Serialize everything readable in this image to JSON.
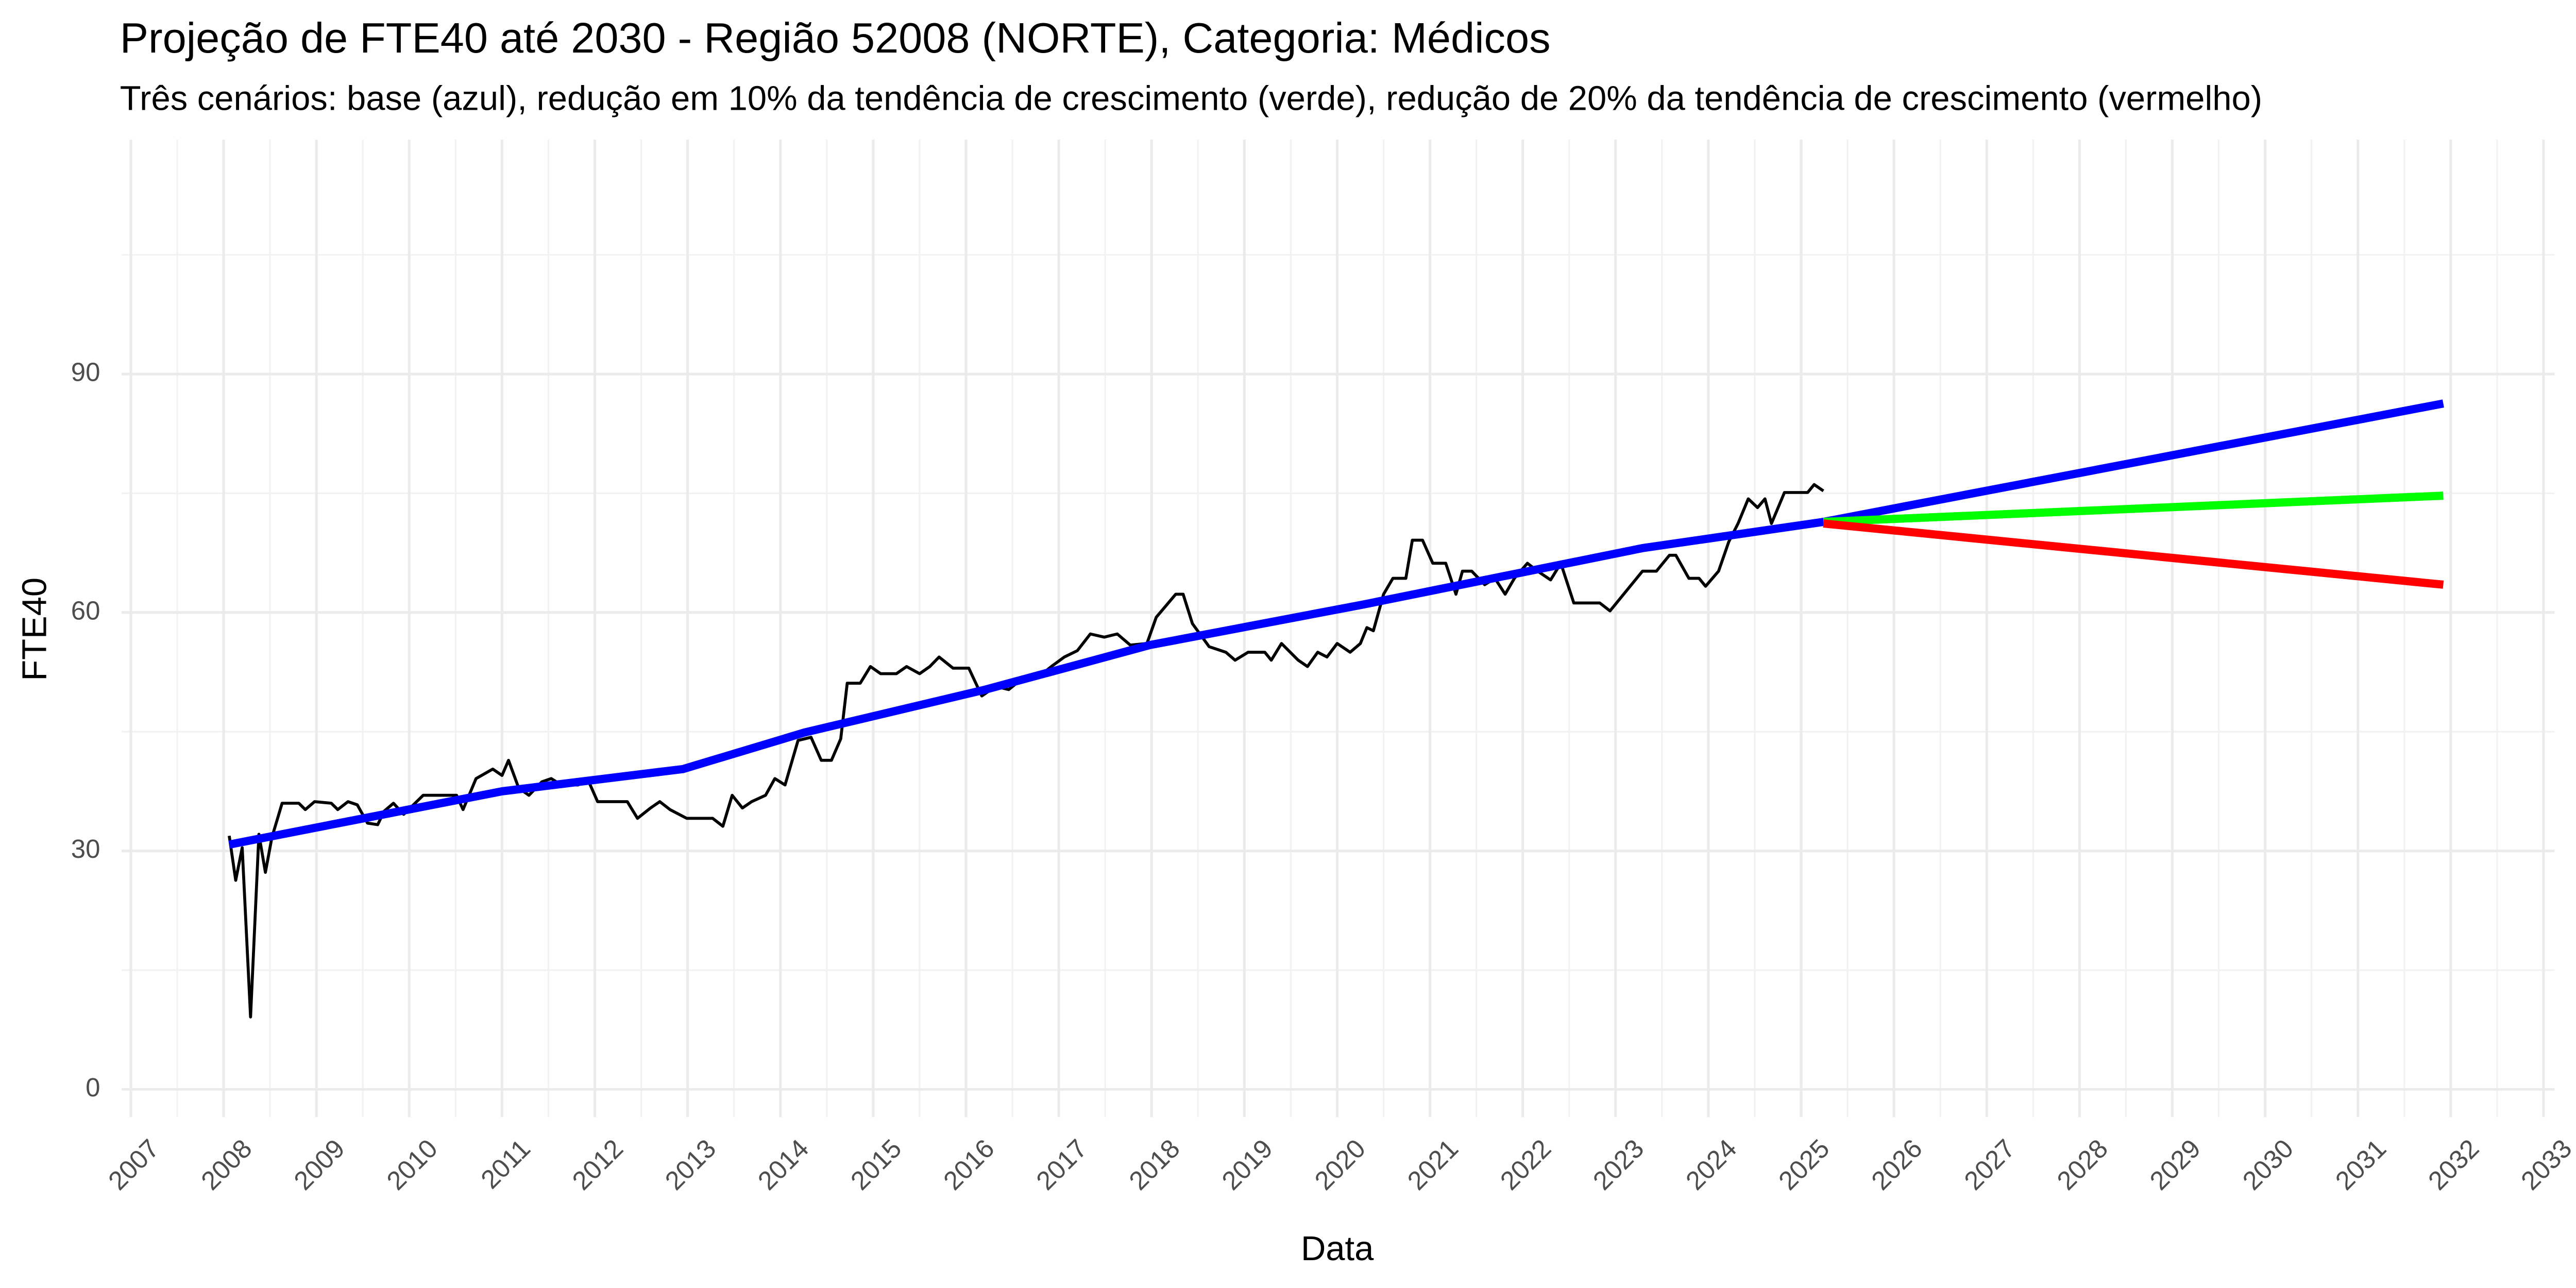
{
  "chart_data": {
    "type": "line",
    "title": "Projeção de FTE40 até 2030 - Região 52008 (NORTE), Categoria: Médicos",
    "subtitle": "Três cenários: base (azul), redução em 10% da tendência de crescimento (verde), redução de 20% da tendência de crescimento (vermelho)",
    "x_label": "Data",
    "y_label": "FTE40",
    "xlim": [
      2006.9,
      2033.12
    ],
    "ylim": [
      -3.5,
      119.5
    ],
    "xticks": [
      2007,
      2008,
      2009,
      2010,
      2011,
      2012,
      2013,
      2014,
      2015,
      2016,
      2017,
      2018,
      2019,
      2020,
      2021,
      2022,
      2023,
      2024,
      2025,
      2026,
      2027,
      2028,
      2029,
      2030,
      2031,
      2032,
      2033
    ],
    "yticks": [
      0,
      30,
      60,
      90
    ],
    "grid": true,
    "series": [
      {
        "color": "#000000",
        "x": [
          2008.06,
          2008.13,
          2008.2,
          2008.29,
          2008.38,
          2008.45,
          2008.52,
          2008.63,
          2008.81,
          2008.88,
          2008.98,
          2009.16,
          2009.23,
          2009.34,
          2009.44,
          2009.55,
          2009.66,
          2009.73,
          2009.83,
          2009.94,
          2010.15,
          2010.51,
          2010.58,
          2010.72,
          2010.9,
          2011.0,
          2011.07,
          2011.18,
          2011.29,
          2011.43,
          2011.53,
          2011.64,
          2011.82,
          2011.92,
          2012.03,
          2012.35,
          2012.46,
          2012.6,
          2012.7,
          2012.81,
          2012.99,
          2013.27,
          2013.38,
          2013.48,
          2013.59,
          2013.69,
          2013.84,
          2013.94,
          2014.05,
          2014.19,
          2014.33,
          2014.44,
          2014.55,
          2014.65,
          2014.72,
          2014.86,
          2014.97,
          2015.08,
          2015.25,
          2015.36,
          2015.5,
          2015.61,
          2015.71,
          2015.86,
          2016.03,
          2016.17,
          2016.32,
          2016.46,
          2016.63,
          2016.78,
          2016.92,
          2017.06,
          2017.2,
          2017.34,
          2017.49,
          2017.63,
          2017.77,
          2017.95,
          2018.05,
          2018.26,
          2018.34,
          2018.44,
          2018.62,
          2018.8,
          2018.9,
          2019.04,
          2019.22,
          2019.29,
          2019.4,
          2019.58,
          2019.68,
          2019.79,
          2019.89,
          2020.0,
          2020.14,
          2020.25,
          2020.32,
          2020.39,
          2020.5,
          2020.6,
          2020.74,
          2020.81,
          2020.92,
          2021.03,
          2021.17,
          2021.28,
          2021.35,
          2021.45,
          2021.59,
          2021.7,
          2021.81,
          2021.91,
          2022.05,
          2022.16,
          2022.3,
          2022.41,
          2022.55,
          2022.83,
          2022.94,
          2023.29,
          2023.44,
          2023.58,
          2023.65,
          2023.79,
          2023.9,
          2023.97,
          2024.11,
          2024.22,
          2024.32,
          2024.43,
          2024.53,
          2024.61,
          2024.68,
          2024.82,
          2025.07,
          2025.14,
          2025.24
        ],
        "values": [
          31.9,
          26.3,
          30.4,
          9.1,
          32.1,
          27.3,
          31.7,
          36.0,
          36.0,
          35.2,
          36.2,
          36.0,
          35.2,
          36.2,
          35.8,
          33.5,
          33.3,
          35.0,
          36.0,
          34.6,
          37.0,
          37.0,
          35.2,
          39.1,
          40.3,
          39.5,
          41.4,
          37.9,
          37.0,
          38.7,
          39.1,
          38.3,
          38.3,
          39.1,
          36.2,
          36.2,
          34.1,
          35.4,
          36.2,
          35.2,
          34.1,
          34.1,
          33.1,
          37.0,
          35.4,
          36.2,
          37.0,
          39.1,
          38.3,
          43.9,
          44.3,
          41.4,
          41.4,
          44.1,
          51.1,
          51.1,
          53.2,
          52.3,
          52.3,
          53.2,
          52.3,
          53.2,
          54.4,
          53.0,
          53.0,
          49.5,
          50.7,
          50.3,
          51.9,
          51.9,
          53.2,
          54.4,
          55.2,
          57.3,
          56.9,
          57.3,
          55.9,
          56.1,
          59.4,
          62.3,
          62.3,
          58.6,
          55.7,
          55.0,
          54.0,
          55.0,
          55.0,
          54.0,
          56.1,
          54.0,
          53.2,
          55.0,
          54.4,
          56.1,
          55.0,
          56.1,
          58.1,
          57.7,
          62.3,
          64.3,
          64.3,
          69.1,
          69.1,
          66.2,
          66.2,
          62.3,
          65.2,
          65.2,
          63.5,
          64.3,
          62.3,
          64.3,
          66.2,
          65.2,
          64.1,
          66.2,
          61.2,
          61.2,
          60.2,
          65.2,
          65.2,
          67.2,
          67.2,
          64.3,
          64.3,
          63.3,
          65.2,
          68.9,
          71.2,
          74.3,
          73.2,
          74.3,
          71.2,
          75.1,
          75.1,
          76.1,
          75.3
        ]
      },
      {
        "color": "#0000ff",
        "x": [
          2008.06,
          2011.0,
          2012.95,
          2014.26,
          2016.21,
          2017.98,
          2020.28,
          2023.29,
          2025.24,
          2031.92
        ],
        "values": [
          30.8,
          37.5,
          40.3,
          44.9,
          50.3,
          55.9,
          61.0,
          68.1,
          71.4,
          86.3
        ]
      },
      {
        "color": "#00ff00",
        "x": [
          2025.24,
          2031.92
        ],
        "values": [
          71.4,
          74.7
        ]
      },
      {
        "color": "#ff0000",
        "x": [
          2025.24,
          2031.92
        ],
        "values": [
          71.2,
          63.5
        ]
      }
    ]
  }
}
